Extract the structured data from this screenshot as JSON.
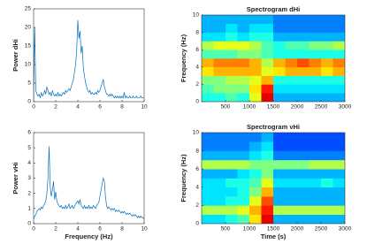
{
  "chart_data": [
    {
      "type": "line",
      "ylabel": "Power dHi",
      "xlim": [
        0,
        10
      ],
      "xticks": [
        0,
        2,
        4,
        6,
        8,
        10
      ],
      "ylim": [
        0,
        25
      ],
      "yticks": [
        0,
        5,
        10,
        15,
        20,
        25
      ],
      "color": "#0072bd",
      "grid": false,
      "x": [
        0,
        0.1,
        0.2,
        0.3,
        0.4,
        0.5,
        0.6,
        0.7,
        0.8,
        0.9,
        1,
        1.1,
        1.2,
        1.3,
        1.4,
        1.5,
        1.6,
        1.7,
        1.8,
        1.9,
        2,
        2.1,
        2.2,
        2.3,
        2.4,
        2.5,
        2.6,
        2.7,
        2.8,
        2.9,
        3,
        3.1,
        3.2,
        3.3,
        3.4,
        3.5,
        3.6,
        3.7,
        3.8,
        3.9,
        4,
        4.1,
        4.2,
        4.3,
        4.4,
        4.5,
        4.6,
        4.7,
        4.8,
        4.9,
        5,
        5.1,
        5.2,
        5.3,
        5.4,
        5.5,
        5.6,
        5.7,
        5.8,
        5.9,
        6,
        6.1,
        6.2,
        6.3,
        6.4,
        6.5,
        6.6,
        6.7,
        6.8,
        6.9,
        7,
        7.1,
        7.2,
        7.3,
        7.4,
        7.5,
        7.6,
        7.7,
        7.8,
        7.9,
        8,
        8.1,
        8.2,
        8.3,
        8.4,
        8.5,
        8.6,
        8.7,
        8.8,
        8.9,
        9,
        9.1,
        9.2,
        9.3,
        9.4,
        9.5,
        9.6,
        9.7,
        9.8,
        9.9,
        10
      ],
      "values": [
        0.5,
        20,
        3,
        2,
        1.5,
        2,
        1,
        2.5,
        1.5,
        2,
        3,
        2,
        4,
        3,
        2,
        2.5,
        1.5,
        3,
        2,
        1.5,
        2,
        1.5,
        2.5,
        1.5,
        2,
        1.5,
        2,
        2.5,
        2,
        3,
        2.5,
        3,
        3.5,
        3,
        4,
        5,
        6,
        8,
        10,
        14,
        22,
        17,
        19,
        13,
        15,
        9,
        7,
        5,
        4,
        3,
        2.5,
        3,
        2,
        2.5,
        2,
        2,
        2.5,
        2,
        3,
        2.5,
        3,
        4,
        5,
        6,
        4,
        3,
        2,
        2,
        1.5,
        2,
        1.5,
        2,
        1.5,
        1,
        1.5,
        1,
        1.5,
        1,
        1.5,
        1,
        1.5,
        1,
        2.5,
        1,
        1.5,
        1,
        1,
        1.5,
        1,
        1,
        1.5,
        1,
        1,
        1.5,
        1,
        1,
        1,
        1.5,
        1,
        1,
        1
      ]
    },
    {
      "type": "heatmap",
      "title": "Spectrogram dHi",
      "ylabel": "Frequency (Hz)",
      "colormap": "jet",
      "xlim": [
        0,
        3000
      ],
      "xticks": [
        500,
        1000,
        1500,
        2000,
        2500,
        3000
      ],
      "ylim": [
        0,
        10
      ],
      "yticks": [
        0,
        2,
        4,
        6,
        8,
        10
      ],
      "x": [
        125,
        375,
        625,
        875,
        1125,
        1375,
        1625,
        1875,
        2125,
        2375,
        2625,
        2875
      ],
      "y": [
        0.5,
        1.5,
        2.5,
        3.5,
        4.5,
        5.5,
        6.5,
        7.5,
        8.5,
        9.5
      ],
      "z": [
        [
          0.4,
          0.4,
          0.45,
          0.4,
          0.6,
          0.9,
          0.3,
          0.3,
          0.3,
          0.3,
          0.3,
          0.3
        ],
        [
          0.45,
          0.5,
          0.5,
          0.5,
          0.65,
          0.85,
          0.35,
          0.35,
          0.35,
          0.35,
          0.35,
          0.35
        ],
        [
          0.5,
          0.5,
          0.55,
          0.55,
          0.6,
          0.7,
          0.4,
          0.4,
          0.4,
          0.4,
          0.4,
          0.4
        ],
        [
          0.65,
          0.7,
          0.7,
          0.7,
          0.7,
          0.6,
          0.65,
          0.7,
          0.7,
          0.7,
          0.65,
          0.7
        ],
        [
          0.7,
          0.75,
          0.75,
          0.75,
          0.7,
          0.55,
          0.7,
          0.75,
          0.8,
          0.75,
          0.7,
          0.75
        ],
        [
          0.45,
          0.45,
          0.45,
          0.5,
          0.5,
          0.45,
          0.4,
          0.4,
          0.4,
          0.4,
          0.4,
          0.4
        ],
        [
          0.55,
          0.6,
          0.6,
          0.6,
          0.55,
          0.45,
          0.4,
          0.45,
          0.45,
          0.5,
          0.5,
          0.55
        ],
        [
          0.35,
          0.35,
          0.4,
          0.35,
          0.4,
          0.4,
          0.3,
          0.3,
          0.3,
          0.3,
          0.3,
          0.3
        ],
        [
          0.3,
          0.3,
          0.35,
          0.3,
          0.35,
          0.35,
          0.25,
          0.25,
          0.25,
          0.25,
          0.25,
          0.25
        ],
        [
          0.3,
          0.3,
          0.3,
          0.3,
          0.3,
          0.3,
          0.25,
          0.25,
          0.25,
          0.25,
          0.25,
          0.25
        ]
      ]
    },
    {
      "type": "line",
      "ylabel": "Power vHi",
      "xlabel": "Frequency (Hz)",
      "xlim": [
        0,
        10
      ],
      "xticks": [
        0,
        2,
        4,
        6,
        8,
        10
      ],
      "ylim": [
        0,
        6
      ],
      "yticks": [
        0,
        1,
        2,
        3,
        4,
        5,
        6
      ],
      "color": "#0072bd",
      "grid": false,
      "x": [
        0,
        0.1,
        0.2,
        0.3,
        0.4,
        0.5,
        0.6,
        0.7,
        0.8,
        0.9,
        1,
        1.1,
        1.2,
        1.3,
        1.4,
        1.5,
        1.6,
        1.7,
        1.8,
        1.9,
        2,
        2.1,
        2.2,
        2.3,
        2.4,
        2.5,
        2.6,
        2.7,
        2.8,
        2.9,
        3,
        3.1,
        3.2,
        3.3,
        3.4,
        3.5,
        3.6,
        3.7,
        3.8,
        3.9,
        4,
        4.1,
        4.2,
        4.3,
        4.4,
        4.5,
        4.6,
        4.7,
        4.8,
        4.9,
        5,
        5.1,
        5.2,
        5.3,
        5.4,
        5.5,
        5.6,
        5.7,
        5.8,
        5.9,
        6,
        6.1,
        6.2,
        6.3,
        6.4,
        6.5,
        6.6,
        6.7,
        6.8,
        6.9,
        7,
        7.1,
        7.2,
        7.3,
        7.4,
        7.5,
        7.6,
        7.7,
        7.8,
        7.9,
        8,
        8.1,
        8.2,
        8.3,
        8.4,
        8.5,
        8.6,
        8.7,
        8.8,
        8.9,
        9,
        9.1,
        9.2,
        9.3,
        9.4,
        9.5,
        9.6,
        9.7,
        9.8,
        9.9,
        10
      ],
      "values": [
        0.3,
        0.5,
        0.6,
        0.8,
        0.9,
        1,
        0.9,
        1.1,
        1,
        1.2,
        1.3,
        1.5,
        2,
        3,
        5.1,
        2.5,
        1.8,
        2.2,
        2.8,
        1.6,
        2.1,
        1.5,
        1.3,
        1.2,
        1.1,
        1.2,
        1,
        1.1,
        1,
        1.2,
        1,
        1.1,
        1.3,
        1,
        1.1,
        1.2,
        1,
        1.1,
        1.3,
        1.4,
        1.5,
        1.3,
        1.6,
        1.2,
        1.1,
        1,
        1.2,
        1,
        1.1,
        1,
        1.2,
        1,
        1.1,
        1,
        1.2,
        1.1,
        1,
        1.2,
        1.3,
        1.4,
        1.8,
        2.2,
        2.6,
        3,
        2.8,
        1.8,
        1.2,
        1,
        1.1,
        1,
        0.9,
        1,
        0.9,
        1,
        0.8,
        0.9,
        0.8,
        0.9,
        0.8,
        0.7,
        0.8,
        0.7,
        0.8,
        0.7,
        0.6,
        0.7,
        0.6,
        0.7,
        0.6,
        0.5,
        0.6,
        0.5,
        0.6,
        0.5,
        0.4,
        0.5,
        0.4,
        0.5,
        0.4,
        0.4,
        0.3
      ]
    },
    {
      "type": "heatmap",
      "title": "Spectrogram vHi",
      "ylabel": "Frequency (Hz)",
      "xlabel": "Time (s)",
      "colormap": "jet",
      "xlim": [
        0,
        3000
      ],
      "xticks": [
        500,
        1000,
        1500,
        2000,
        2500,
        3000
      ],
      "ylim": [
        0,
        10
      ],
      "yticks": [
        0,
        2,
        4,
        6,
        8,
        10
      ],
      "x": [
        125,
        375,
        625,
        875,
        1125,
        1375,
        1625,
        1875,
        2125,
        2375,
        2625,
        2875
      ],
      "y": [
        0.5,
        1.5,
        2.5,
        3.5,
        4.5,
        5.5,
        6.5,
        7.5,
        8.5,
        9.5
      ],
      "z": [
        [
          0.35,
          0.35,
          0.4,
          0.45,
          0.65,
          0.9,
          0.3,
          0.3,
          0.3,
          0.3,
          0.3,
          0.3
        ],
        [
          0.55,
          0.55,
          0.55,
          0.6,
          0.7,
          0.85,
          0.55,
          0.55,
          0.55,
          0.55,
          0.55,
          0.55
        ],
        [
          0.35,
          0.35,
          0.4,
          0.4,
          0.6,
          0.8,
          0.3,
          0.3,
          0.3,
          0.3,
          0.3,
          0.3
        ],
        [
          0.35,
          0.35,
          0.35,
          0.4,
          0.5,
          0.7,
          0.3,
          0.3,
          0.3,
          0.3,
          0.3,
          0.3
        ],
        [
          0.35,
          0.35,
          0.4,
          0.4,
          0.45,
          0.6,
          0.35,
          0.35,
          0.35,
          0.35,
          0.4,
          0.35
        ],
        [
          0.3,
          0.3,
          0.3,
          0.35,
          0.4,
          0.5,
          0.3,
          0.3,
          0.3,
          0.3,
          0.3,
          0.3
        ],
        [
          0.55,
          0.55,
          0.55,
          0.55,
          0.5,
          0.5,
          0.5,
          0.5,
          0.5,
          0.55,
          0.55,
          0.55
        ],
        [
          0.3,
          0.3,
          0.3,
          0.3,
          0.35,
          0.4,
          0.25,
          0.25,
          0.25,
          0.25,
          0.25,
          0.25
        ],
        [
          0.25,
          0.25,
          0.25,
          0.25,
          0.3,
          0.35,
          0.2,
          0.2,
          0.2,
          0.2,
          0.2,
          0.2
        ],
        [
          0.25,
          0.25,
          0.25,
          0.25,
          0.25,
          0.3,
          0.2,
          0.2,
          0.2,
          0.2,
          0.2,
          0.2
        ]
      ]
    }
  ]
}
